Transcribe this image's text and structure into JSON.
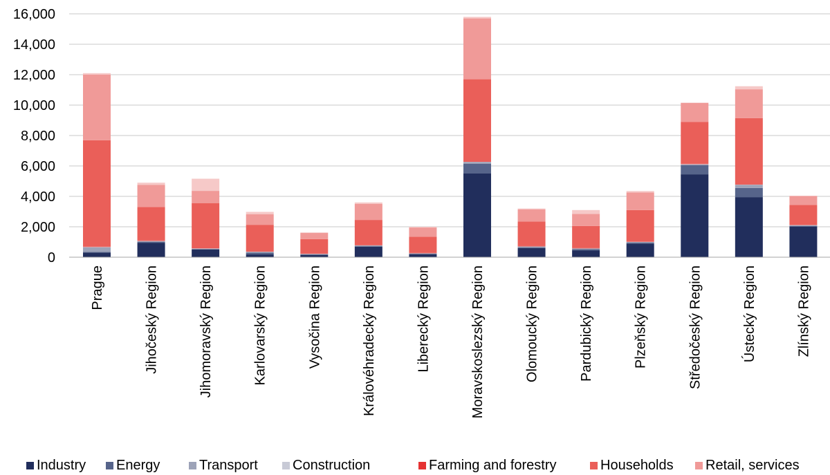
{
  "chart_data": {
    "type": "bar",
    "stacked": true,
    "categories": [
      "Prague",
      "Jihočeský Region",
      "Jihomoravský Region",
      "Karlovarský Region",
      "Vysočina Region",
      "Královéhradecký Region",
      "Liberecký Region",
      "Moravskoslezský Region",
      "Olomoucký Region",
      "Pardubický Region",
      "Plzeňský Region",
      "Středočeský Region",
      "Ústecký Region",
      "Zlínský Region"
    ],
    "series": [
      {
        "name": "Industry",
        "color": "#212e5c",
        "values": [
          300,
          950,
          500,
          180,
          150,
          700,
          200,
          5500,
          600,
          450,
          900,
          5450,
          3950,
          2000
        ]
      },
      {
        "name": "Energy",
        "color": "#56648a",
        "values": [
          50,
          50,
          30,
          120,
          30,
          20,
          20,
          650,
          50,
          70,
          50,
          600,
          600,
          50
        ]
      },
      {
        "name": "Transport",
        "color": "#9da3b8",
        "values": [
          300,
          50,
          30,
          50,
          30,
          50,
          30,
          100,
          50,
          50,
          50,
          50,
          200,
          50
        ]
      },
      {
        "name": "Construction",
        "color": "#c8cad6",
        "values": [
          20,
          20,
          20,
          10,
          10,
          10,
          10,
          20,
          10,
          10,
          10,
          20,
          20,
          10
        ]
      },
      {
        "name": "Farming and forestry",
        "color": "#e53232",
        "values": [
          20,
          30,
          30,
          20,
          20,
          20,
          20,
          30,
          20,
          20,
          20,
          30,
          20,
          20
        ]
      },
      {
        "name": "Households",
        "color": "#ea5f59",
        "values": [
          7000,
          2200,
          2950,
          1750,
          950,
          1650,
          1070,
          5400,
          1620,
          1450,
          2070,
          2750,
          4350,
          1300
        ]
      },
      {
        "name": "Retail, services",
        "color": "#f09a98",
        "values": [
          4310,
          1450,
          800,
          700,
          400,
          1050,
          600,
          4000,
          800,
          800,
          1150,
          1250,
          1900,
          600
        ]
      },
      {
        "name": "",
        "color": "#f6c9c8",
        "values": [
          100,
          150,
          800,
          150,
          40,
          100,
          50,
          100,
          50,
          250,
          100,
          0,
          200,
          0
        ]
      }
    ],
    "ylim": [
      0,
      16000
    ],
    "yticks": [
      "0",
      "2,000",
      "4,000",
      "6,000",
      "8,000",
      "10,000",
      "12,000",
      "14,000",
      "16,000"
    ],
    "grid": true,
    "legend_position": "bottom",
    "title": "",
    "xlabel": "",
    "ylabel": ""
  }
}
